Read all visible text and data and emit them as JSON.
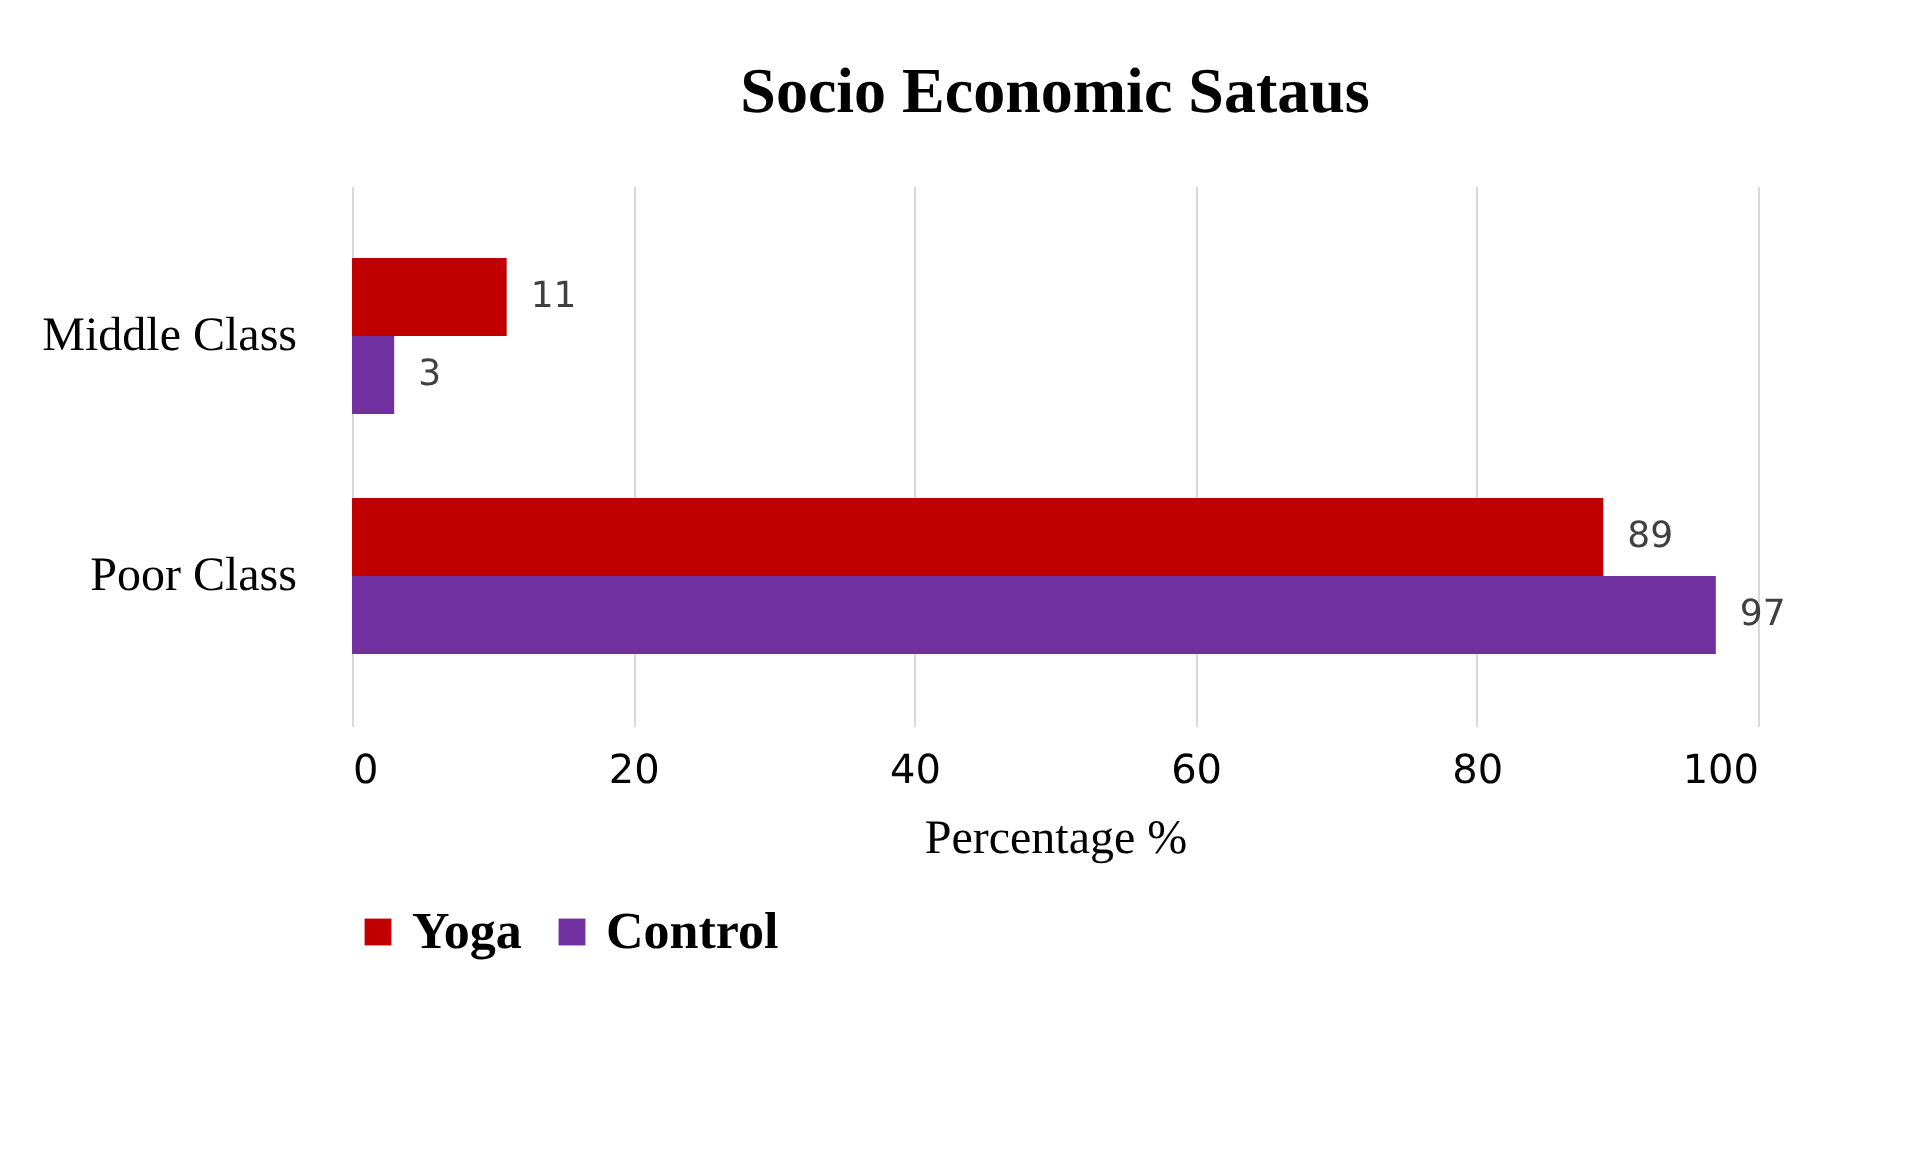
{
  "chart_data": {
    "type": "bar",
    "orientation": "horizontal",
    "title": "Socio Economic Sataus",
    "xlabel": "Percentage %",
    "categories": [
      "Middle Class",
      "Poor Class"
    ],
    "series": [
      {
        "name": "Yoga",
        "color": "#c00000",
        "values": [
          11,
          89
        ]
      },
      {
        "name": "Control",
        "color": "#7030a0",
        "values": [
          3,
          97
        ]
      }
    ],
    "xlim": [
      0,
      100
    ],
    "xticks": [
      0,
      20,
      40,
      60,
      80,
      100
    ],
    "grid": "x",
    "legend": "bottom",
    "data_labels": true
  }
}
